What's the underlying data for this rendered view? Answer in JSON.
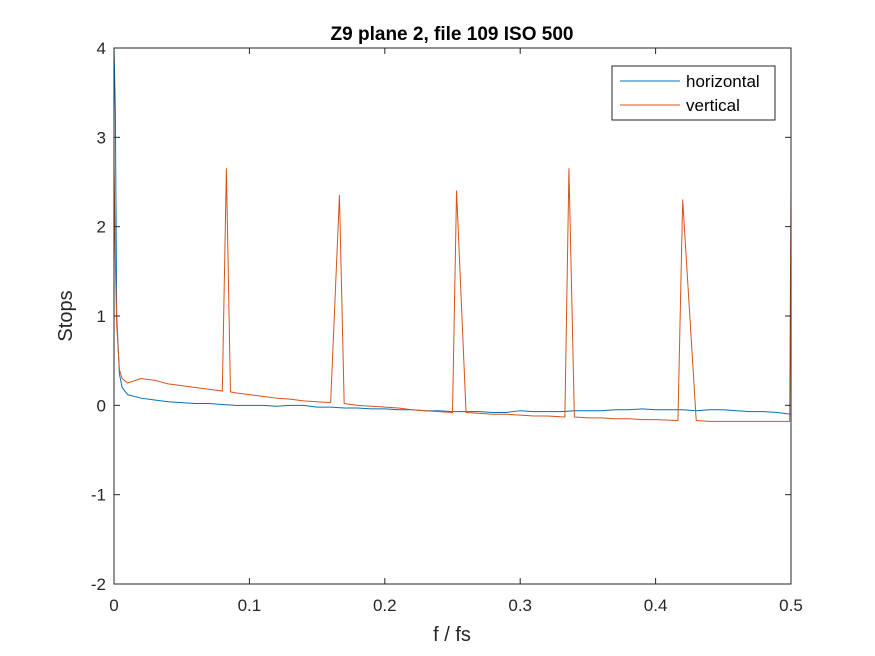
{
  "chart_data": {
    "type": "line",
    "title": "Z9 plane 2, file 109 ISO 500",
    "xlabel": "f / fs",
    "ylabel": "Stops",
    "xlim": [
      0,
      0.5
    ],
    "ylim": [
      -2,
      4
    ],
    "xticks": [
      0,
      0.1,
      0.2,
      0.3,
      0.4,
      0.5
    ],
    "xtick_labels": [
      "0",
      "0.1",
      "0.2",
      "0.3",
      "0.4",
      "0.5"
    ],
    "yticks": [
      -2,
      -1,
      0,
      1,
      2,
      3,
      4
    ],
    "ytick_labels": [
      "-2",
      "-1",
      "0",
      "1",
      "2",
      "3",
      "4"
    ],
    "grid": false,
    "legend_position": "top-right",
    "series": [
      {
        "name": "horizontal",
        "color": "#0072BD",
        "x": [
          0,
          0.001,
          0.002,
          0.004,
          0.006,
          0.01,
          0.02,
          0.03,
          0.04,
          0.05,
          0.06,
          0.07,
          0.08,
          0.09,
          0.1,
          0.11,
          0.12,
          0.13,
          0.14,
          0.15,
          0.16,
          0.17,
          0.18,
          0.19,
          0.2,
          0.21,
          0.22,
          0.23,
          0.24,
          0.25,
          0.26,
          0.27,
          0.28,
          0.29,
          0.3,
          0.31,
          0.32,
          0.33,
          0.34,
          0.35,
          0.36,
          0.37,
          0.38,
          0.39,
          0.4,
          0.41,
          0.42,
          0.43,
          0.44,
          0.45,
          0.46,
          0.47,
          0.48,
          0.49,
          0.5
        ],
        "y": [
          4.0,
          3.3,
          1.0,
          0.35,
          0.2,
          0.12,
          0.08,
          0.06,
          0.04,
          0.03,
          0.02,
          0.02,
          0.01,
          0.0,
          0.0,
          0.0,
          -0.01,
          0.0,
          0.0,
          -0.02,
          -0.02,
          -0.03,
          -0.03,
          -0.04,
          -0.04,
          -0.05,
          -0.05,
          -0.06,
          -0.06,
          -0.07,
          -0.07,
          -0.07,
          -0.08,
          -0.08,
          -0.06,
          -0.07,
          -0.07,
          -0.07,
          -0.06,
          -0.06,
          -0.06,
          -0.05,
          -0.05,
          -0.04,
          -0.05,
          -0.05,
          -0.05,
          -0.06,
          -0.05,
          -0.05,
          -0.06,
          -0.07,
          -0.07,
          -0.08,
          -0.1
        ]
      },
      {
        "name": "vertical",
        "color": "#D95319",
        "x": [
          0,
          0.001,
          0.002,
          0.004,
          0.006,
          0.01,
          0.02,
          0.03,
          0.04,
          0.05,
          0.06,
          0.07,
          0.08,
          0.083,
          0.086,
          0.09,
          0.1,
          0.11,
          0.12,
          0.13,
          0.14,
          0.15,
          0.16,
          0.1665,
          0.17,
          0.18,
          0.19,
          0.2,
          0.21,
          0.22,
          0.23,
          0.24,
          0.25,
          0.253,
          0.26,
          0.27,
          0.28,
          0.29,
          0.3,
          0.31,
          0.32,
          0.333,
          0.336,
          0.34,
          0.35,
          0.36,
          0.37,
          0.38,
          0.39,
          0.4,
          0.4165,
          0.42,
          0.43,
          0.44,
          0.45,
          0.46,
          0.47,
          0.48,
          0.49,
          0.499,
          0.5
        ],
        "y": [
          2.7,
          1.6,
          0.9,
          0.4,
          0.3,
          0.25,
          0.3,
          0.28,
          0.24,
          0.22,
          0.2,
          0.18,
          0.16,
          2.65,
          0.15,
          0.14,
          0.12,
          0.1,
          0.08,
          0.07,
          0.05,
          0.04,
          0.03,
          2.35,
          0.02,
          0.0,
          -0.01,
          -0.02,
          -0.03,
          -0.05,
          -0.06,
          -0.07,
          -0.08,
          2.4,
          -0.08,
          -0.09,
          -0.1,
          -0.1,
          -0.11,
          -0.12,
          -0.12,
          -0.13,
          2.65,
          -0.13,
          -0.14,
          -0.14,
          -0.15,
          -0.15,
          -0.16,
          -0.16,
          -0.17,
          2.3,
          -0.17,
          -0.18,
          -0.18,
          -0.18,
          -0.18,
          -0.18,
          -0.18,
          -0.18,
          2.45
        ]
      }
    ]
  }
}
